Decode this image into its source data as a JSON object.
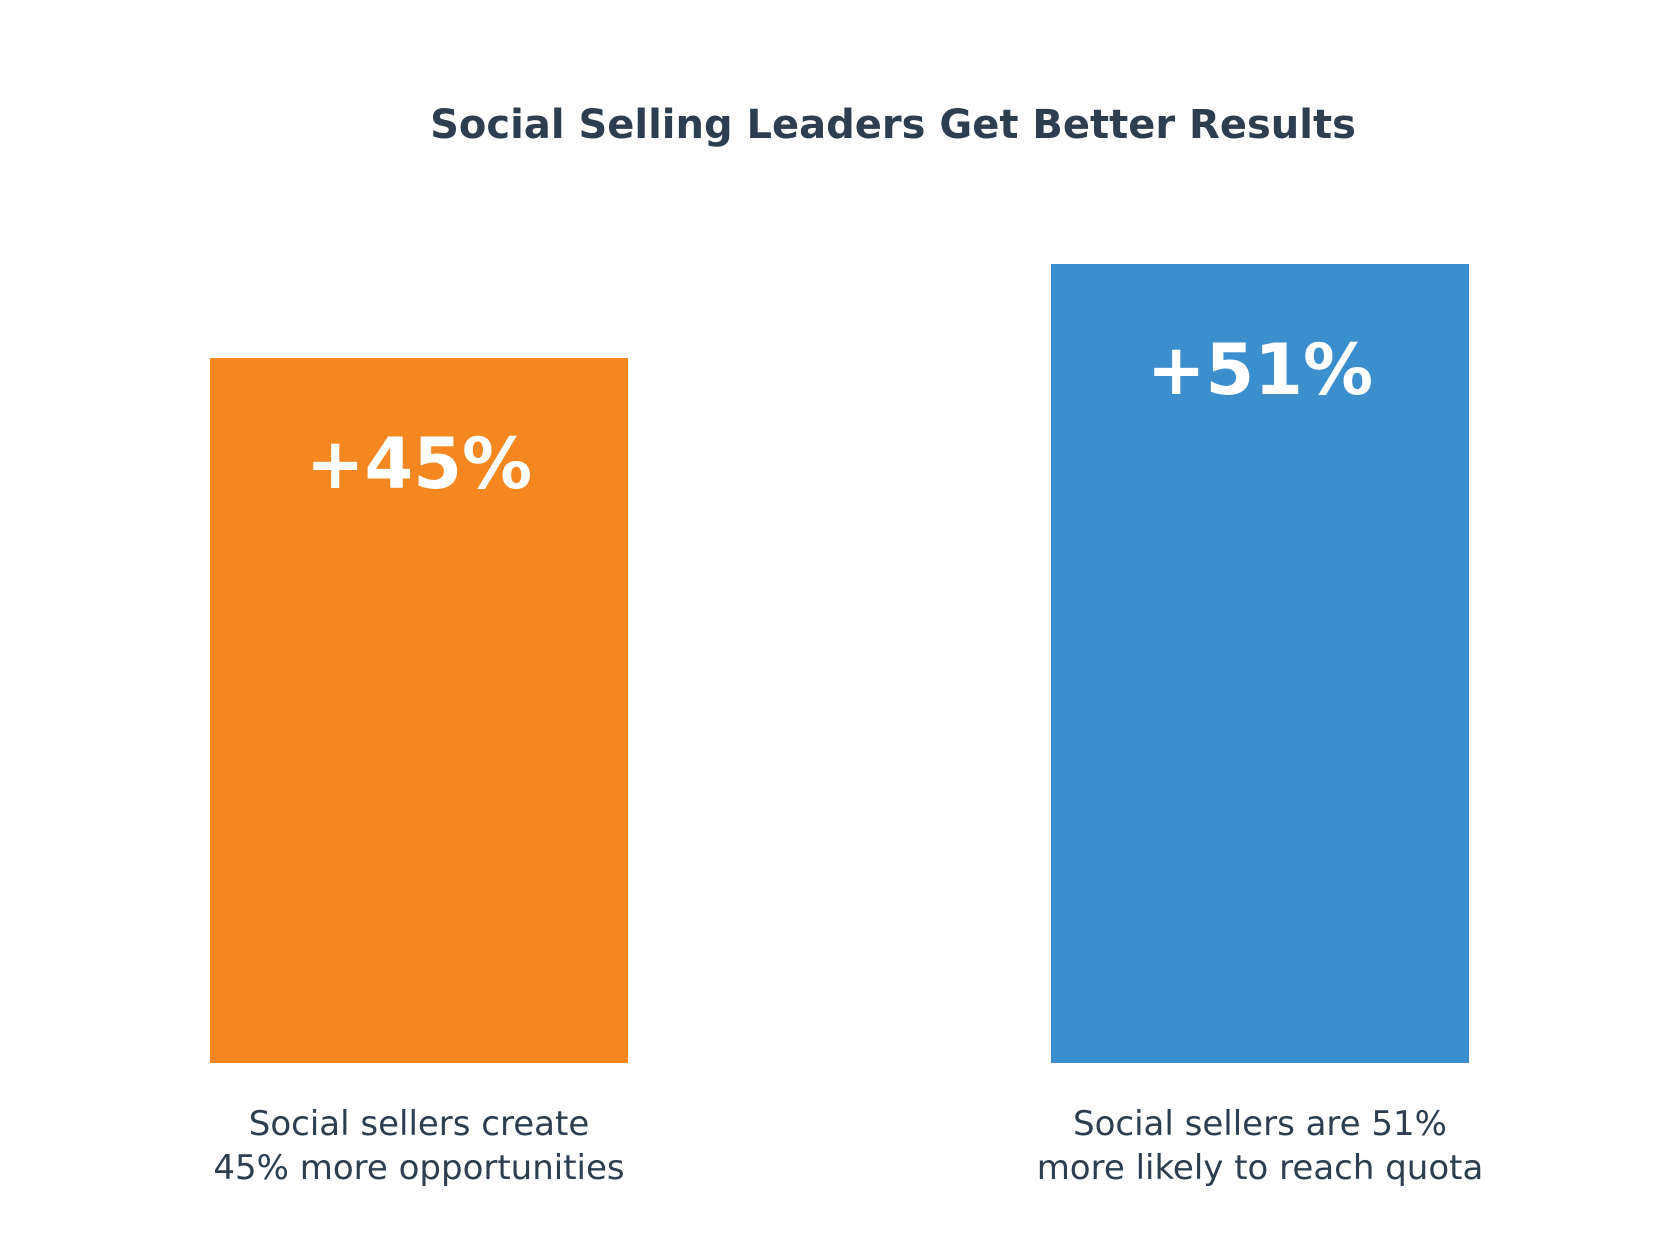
{
  "chart_data": {
    "type": "bar",
    "title": "Social Selling Leaders Get Better Results",
    "categories": [
      [
        "Social sellers create",
        "45% more opportunities"
      ],
      [
        "Social sellers are 51%",
        "more likely to reach quota"
      ]
    ],
    "values": [
      45,
      51
    ],
    "data_labels": [
      "+45%",
      "+51%"
    ],
    "ylim": [
      0,
      51
    ],
    "grid": false,
    "legend": "none",
    "bar_colors": [
      "#F58720",
      "#3C8FCD"
    ],
    "text_color": "#2C3E50",
    "data_label_color": "#FFFFFF"
  }
}
